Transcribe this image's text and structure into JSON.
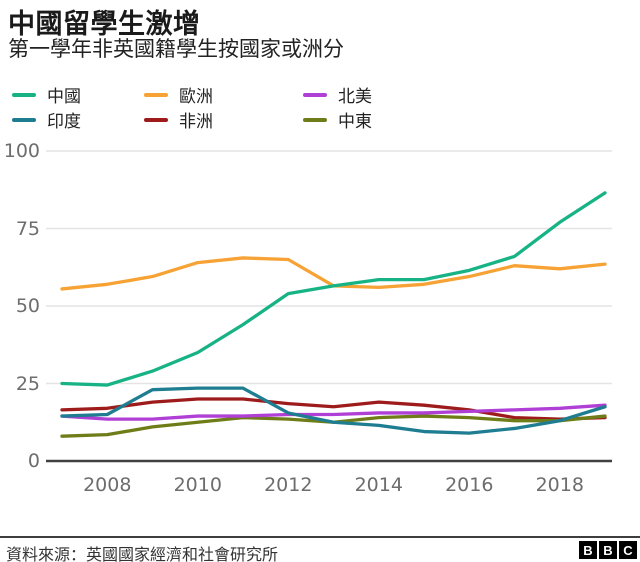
{
  "header": {
    "title": "中國留學生激增",
    "subtitle": "第一學年非英國籍學生按國家或洲分"
  },
  "legend": {
    "items": [
      {
        "label": "中國",
        "color": "#17b385"
      },
      {
        "label": "歐洲",
        "color": "#f7a235"
      },
      {
        "label": "北美",
        "color": "#b03fd6"
      },
      {
        "label": "印度",
        "color": "#1f7d91"
      },
      {
        "label": "非洲",
        "color": "#9e1b1b"
      },
      {
        "label": "中東",
        "color": "#6f7d18"
      }
    ]
  },
  "chart_data": {
    "type": "line",
    "x": [
      2007,
      2008,
      2009,
      2010,
      2011,
      2012,
      2013,
      2014,
      2015,
      2016,
      2017,
      2018,
      2019
    ],
    "series": [
      {
        "key": "africa",
        "name": "非洲",
        "color": "#9e1b1b",
        "values": [
          16.5,
          17,
          19,
          20,
          20,
          18.5,
          17.5,
          19,
          18,
          16.5,
          14,
          13.5,
          14
        ]
      },
      {
        "key": "middle-east",
        "name": "中東",
        "color": "#6f7d18",
        "values": [
          8,
          8.5,
          11,
          12.5,
          14,
          13.5,
          12.5,
          14,
          14.5,
          14,
          13,
          13,
          14.5
        ]
      },
      {
        "key": "north-america",
        "name": "北美",
        "color": "#b03fd6",
        "values": [
          14.5,
          13.5,
          13.5,
          14.5,
          14.5,
          15,
          15,
          15.5,
          15.5,
          16,
          16.5,
          17,
          18
        ]
      },
      {
        "key": "india",
        "name": "印度",
        "color": "#1f7d91",
        "values": [
          14.5,
          15,
          23,
          23.5,
          23.5,
          15.5,
          12.5,
          11.5,
          9.5,
          9,
          10.5,
          13,
          17.5
        ]
      },
      {
        "key": "europe",
        "name": "歐洲",
        "color": "#f7a235",
        "values": [
          55.5,
          57,
          59.5,
          64,
          65.5,
          65,
          56.5,
          56,
          57,
          59.5,
          63,
          62,
          63.5
        ]
      },
      {
        "key": "china",
        "name": "中國",
        "color": "#17b385",
        "values": [
          25,
          24.5,
          29,
          35,
          44,
          54,
          56.5,
          58.5,
          58.5,
          61.5,
          66,
          77,
          86.5
        ]
      }
    ],
    "title": "中國留學生激增",
    "xlabel": "",
    "ylabel": "",
    "ylim": [
      0,
      100
    ],
    "yticks": [
      0,
      25,
      50,
      75,
      100
    ],
    "xticks": [
      2008,
      2010,
      2012,
      2014,
      2016,
      2018
    ],
    "grid": true,
    "legend_position": "top"
  },
  "footer": {
    "source": "資料來源：英國國家經濟和社會研究所",
    "logo_letters": [
      "B",
      "B",
      "C"
    ]
  }
}
